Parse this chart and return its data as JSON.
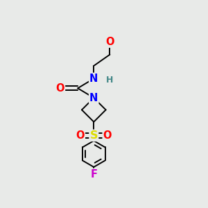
{
  "bg_color": "#e8eae8",
  "bond_color": "#000000",
  "atom_colors": {
    "O": "#ff0000",
    "N": "#0000ff",
    "S": "#dddd00",
    "F": "#cc00cc",
    "H": "#448888",
    "C": "#000000"
  },
  "bond_width": 1.4,
  "dbo": 0.012,
  "fs": 10.5
}
